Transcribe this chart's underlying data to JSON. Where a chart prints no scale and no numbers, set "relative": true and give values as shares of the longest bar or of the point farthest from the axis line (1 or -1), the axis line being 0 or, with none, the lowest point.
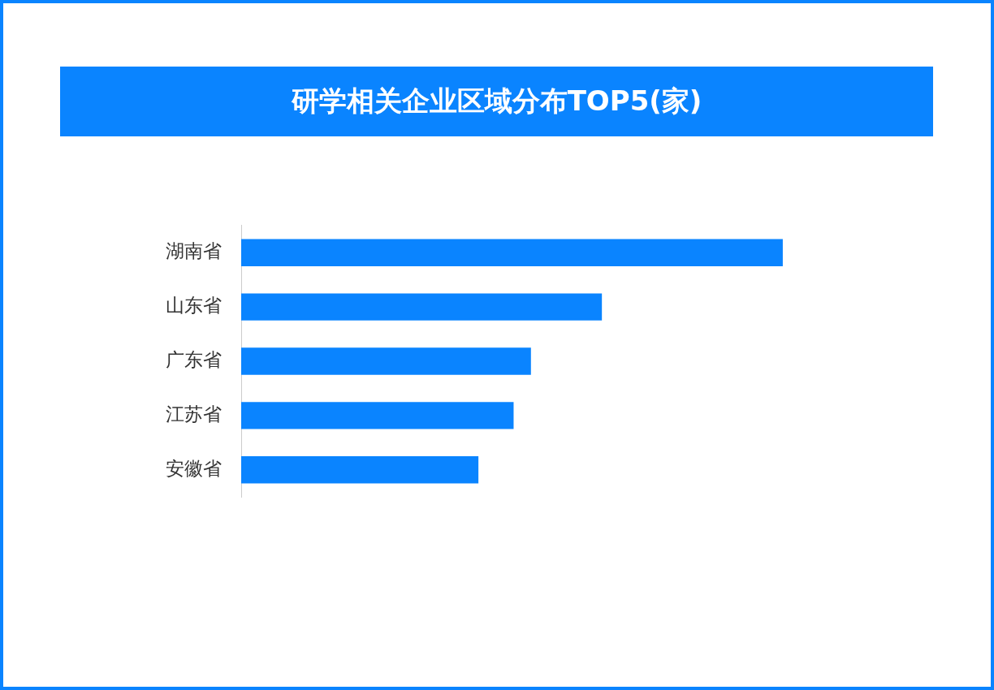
{
  "chart_data": {
    "type": "bar",
    "title": "研学相关企业区域分布TOP5(家)",
    "orientation": "horizontal",
    "relative": true,
    "categories": [
      "湖南省",
      "山东省",
      "广东省",
      "江苏省",
      "安徽省"
    ],
    "values": [
      1,
      0.666,
      0.535,
      0.503,
      0.438
    ],
    "color": "#0a84ff",
    "legend": false
  }
}
